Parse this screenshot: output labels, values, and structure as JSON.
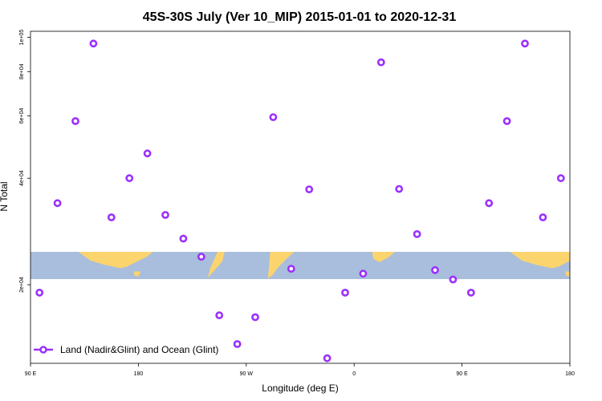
{
  "chart_data": {
    "type": "scatter",
    "title": "45S-30S July (Ver 10_MIP)   2015-01-01 to 2020-12-31",
    "xlabel": "Longitude (deg E)",
    "ylabel": "N Total",
    "xlim": [
      90,
      540
    ],
    "ylim": [
      12000,
      104000
    ],
    "y_scale": "log",
    "x_ticks": [
      {
        "value": 90,
        "label": "90 E"
      },
      {
        "value": 180,
        "label": "180"
      },
      {
        "value": 270,
        "label": "90 W"
      },
      {
        "value": 360,
        "label": "0"
      },
      {
        "value": 450,
        "label": "90 E"
      },
      {
        "value": 540,
        "label": "180"
      }
    ],
    "y_ticks": [
      {
        "value": 20000,
        "label": "2e+04"
      },
      {
        "value": 40000,
        "label": "4e+04"
      },
      {
        "value": 60000,
        "label": "6e+04"
      },
      {
        "value": 80000,
        "label": "8e+04"
      },
      {
        "value": 100000,
        "label": "1e+05"
      }
    ],
    "series": [
      {
        "name": "Land (Nadir&Glint) and Ocean (Glint)",
        "color": "#9b30ff",
        "x": [
          97.5,
          112.5,
          127.5,
          142.5,
          157.5,
          172.5,
          187.5,
          202.5,
          217.5,
          232.5,
          247.5,
          262.5,
          277.5,
          292.5,
          307.5,
          322.5,
          337.5,
          352.5,
          367.5,
          382.5,
          397.5,
          412.5,
          427.5,
          442.5,
          457.5,
          472.5,
          487.5,
          502.5,
          517.5,
          532.5
        ],
        "y": [
          19000,
          34000,
          58000,
          96000,
          31000,
          40000,
          47000,
          31500,
          27000,
          24000,
          16400,
          13600,
          16200,
          59500,
          22200,
          37200,
          12400,
          19000,
          21500,
          85000,
          37300,
          27800,
          22000,
          20700,
          19000,
          34000,
          58000,
          96000,
          31000,
          40000
        ]
      }
    ],
    "legend": {
      "position": "bottom-left",
      "entries": [
        "Land (Nadir&Glint) and Ocean (Glint)"
      ]
    },
    "map_strip_colors": {
      "ocean": "#a9bedc",
      "land": "#fcd46e"
    }
  }
}
